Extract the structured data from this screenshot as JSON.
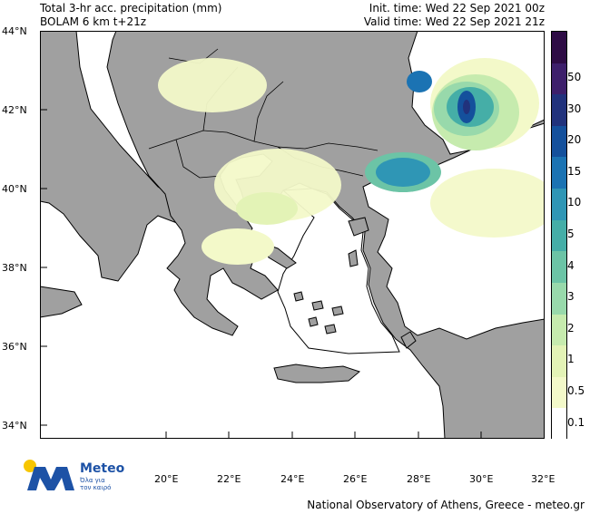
{
  "header": {
    "title_line1": "Total 3-hr acc. precipitation (mm)",
    "title_line2": "BOLAM 6 km t+21z",
    "init_time": "Init. time: Wed 22 Sep 2021 00z",
    "valid_time": "Valid time: Wed 22 Sep 2021 21z"
  },
  "map": {
    "lat_labels": [
      "44°N",
      "42°N",
      "40°N",
      "38°N",
      "36°N",
      "34°N"
    ],
    "lat_values": [
      44,
      42,
      40,
      38,
      36,
      34
    ],
    "lon_labels": [
      "20°E",
      "22°E",
      "24°E",
      "26°E",
      "28°E",
      "30°E",
      "32°E"
    ],
    "lon_values": [
      20,
      22,
      24,
      26,
      28,
      30,
      32
    ],
    "lat_range": [
      33.6,
      44
    ],
    "lon_range": [
      16.5,
      32.5
    ],
    "land_color": "#a0a0a0",
    "sea_color": "#ffffff"
  },
  "colorbar": {
    "labels": [
      "0.1",
      "0.5",
      "1",
      "2",
      "3",
      "4",
      "5",
      "10",
      "15",
      "20",
      "30",
      "50"
    ],
    "colors": [
      "#ffffff",
      "#f3f9c9",
      "#e3f3b6",
      "#c6ebae",
      "#98d9ab",
      "#6cc4a6",
      "#45aea7",
      "#2f96b5",
      "#1b73b3",
      "#14509c",
      "#21327c",
      "#3d1f6b",
      "#2e0c45"
    ]
  },
  "logo": {
    "brand": "Meteo",
    "tagline_1": "Όλα για",
    "tagline_2": "τον καιρό",
    "sun_color": "#f7c600",
    "mark_color": "#1d52a6"
  },
  "footer": {
    "credit": "National Observatory of Athens, Greece - meteo.gr"
  }
}
